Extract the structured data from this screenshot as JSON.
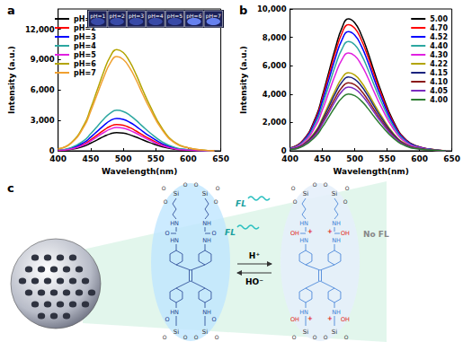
{
  "chart_data": [
    {
      "type": "line",
      "title": "a",
      "x_label": "Wavelength(nm)",
      "y_label": "Intensity (a.u.)",
      "x": [
        400,
        420,
        440,
        450,
        460,
        470,
        480,
        490,
        500,
        510,
        520,
        530,
        540,
        560,
        580,
        600,
        620,
        640
      ],
      "xlim": [
        400,
        650
      ],
      "xticks": [
        400,
        450,
        500,
        550,
        600,
        650
      ],
      "ylim": [
        0,
        14000
      ],
      "yticks": [
        0,
        3000,
        6000,
        9000,
        12000
      ],
      "grid": false,
      "legend": "upper left",
      "annotations": [
        "pH=1",
        "pH=2",
        "pH=3",
        "pH=4",
        "pH=5",
        "pH=6",
        "pH=7"
      ],
      "series": [
        {
          "name": "pH=1",
          "color": "#000000",
          "values": [
            36,
            144,
            468,
            756,
            1080,
            1404,
            1674,
            1800,
            1746,
            1584,
            1350,
            1080,
            828,
            396,
            144,
            54,
            18,
            0
          ]
        },
        {
          "name": "pH=2",
          "color": "#ff0000",
          "values": [
            52,
            208,
            676,
            1092,
            1560,
            2028,
            2418,
            2600,
            2522,
            2288,
            1950,
            1560,
            1196,
            572,
            208,
            78,
            26,
            0
          ]
        },
        {
          "name": "pH=3",
          "color": "#0000ff",
          "values": [
            64,
            256,
            832,
            1344,
            1920,
            2496,
            2976,
            3200,
            3104,
            2816,
            2400,
            1920,
            1472,
            704,
            256,
            96,
            32,
            0
          ]
        },
        {
          "name": "pH=4",
          "color": "#2ca7a0",
          "values": [
            80,
            320,
            1040,
            1680,
            2400,
            3120,
            3720,
            4000,
            3880,
            3520,
            3000,
            2400,
            1840,
            880,
            320,
            120,
            40,
            0
          ]
        },
        {
          "name": "pH=5",
          "color": "#e020e0",
          "values": [
            46,
            184,
            598,
            966,
            1380,
            1794,
            2139,
            2300,
            2231,
            2024,
            1725,
            1380,
            1058,
            506,
            184,
            69,
            23,
            0
          ]
        },
        {
          "name": "pH=6",
          "color": "#b3a400",
          "values": [
            200,
            800,
            2600,
            4200,
            6000,
            7800,
            9300,
            10000,
            9700,
            8800,
            7500,
            6000,
            4600,
            2200,
            800,
            300,
            100,
            0
          ]
        },
        {
          "name": "pH=7",
          "color": "#f0a030",
          "values": [
            186,
            744,
            2418,
            3906,
            5580,
            7254,
            8649,
            9300,
            9021,
            8184,
            6975,
            5580,
            4278,
            2046,
            744,
            279,
            93,
            0
          ]
        }
      ]
    },
    {
      "type": "line",
      "title": "b",
      "x_label": "Wavelength(nm)",
      "y_label": "Intensity (a.u.)",
      "x": [
        400,
        420,
        440,
        450,
        460,
        470,
        480,
        490,
        500,
        510,
        520,
        530,
        540,
        560,
        580,
        600,
        620,
        640
      ],
      "xlim": [
        400,
        650
      ],
      "xticks": [
        400,
        450,
        500,
        550,
        600,
        650
      ],
      "ylim": [
        0,
        10000
      ],
      "yticks": [
        0,
        2000,
        4000,
        6000,
        8000,
        10000
      ],
      "grid": false,
      "legend": "upper right",
      "series": [
        {
          "name": "5.00",
          "color": "#000000",
          "values": [
            186,
            744,
            2418,
            3906,
            5580,
            7254,
            8649,
            9300,
            9021,
            8184,
            6975,
            5580,
            4278,
            2046,
            744,
            279,
            93,
            0
          ]
        },
        {
          "name": "4.70",
          "color": "#ff0000",
          "values": [
            178,
            712,
            2314,
            3738,
            5340,
            6942,
            8277,
            8900,
            8633,
            7832,
            6675,
            5340,
            4094,
            1958,
            712,
            267,
            89,
            0
          ]
        },
        {
          "name": "4.52",
          "color": "#0000ff",
          "values": [
            168,
            672,
            2184,
            3528,
            5040,
            6552,
            7812,
            8400,
            8148,
            7392,
            6300,
            5040,
            3864,
            1848,
            672,
            252,
            84,
            0
          ]
        },
        {
          "name": "4.40",
          "color": "#2ca7a0",
          "values": [
            154,
            616,
            2002,
            3234,
            4620,
            6006,
            7161,
            7700,
            7469,
            6776,
            5775,
            4620,
            3542,
            1694,
            616,
            231,
            77,
            0
          ]
        },
        {
          "name": "4.30",
          "color": "#e020e0",
          "values": [
            138,
            552,
            1794,
            2898,
            4140,
            5382,
            6417,
            6900,
            6693,
            6072,
            5175,
            4140,
            3174,
            1518,
            552,
            207,
            69,
            0
          ]
        },
        {
          "name": "4.22",
          "color": "#b3a400",
          "values": [
            110,
            440,
            1430,
            2310,
            3300,
            4290,
            5115,
            5500,
            5335,
            4840,
            4125,
            3300,
            2530,
            1210,
            440,
            165,
            55,
            0
          ]
        },
        {
          "name": "4.15",
          "color": "#1a237e",
          "values": [
            104,
            416,
            1352,
            2184,
            3120,
            4056,
            4836,
            5200,
            5044,
            4576,
            3900,
            3120,
            2392,
            1144,
            416,
            156,
            52,
            0
          ]
        },
        {
          "name": "4.10",
          "color": "#8b1a1a",
          "values": [
            96,
            384,
            1248,
            2016,
            2880,
            3744,
            4464,
            4800,
            4656,
            4224,
            3600,
            2880,
            2208,
            1056,
            384,
            144,
            48,
            0
          ]
        },
        {
          "name": "4.05",
          "color": "#7b2cbf",
          "values": [
            90,
            360,
            1170,
            1890,
            2700,
            3510,
            4185,
            4500,
            4365,
            3960,
            3375,
            2700,
            2070,
            990,
            360,
            135,
            45,
            0
          ]
        },
        {
          "name": "4.00",
          "color": "#2e7d32",
          "values": [
            80,
            320,
            1040,
            1680,
            2400,
            3120,
            3720,
            4000,
            3880,
            3520,
            3000,
            2400,
            1840,
            880,
            320,
            120,
            40,
            0
          ]
        }
      ]
    }
  ],
  "diagram": {
    "label": "c",
    "emission_labels": [
      "FL",
      "FL"
    ],
    "quenched_label": "No FL",
    "forward": "H⁺",
    "reverse": "HO⁻",
    "atoms": {
      "si": "Si",
      "o": "O",
      "hn": "HN",
      "nh": "NH",
      "oh": "OH",
      "plus": "+"
    }
  }
}
